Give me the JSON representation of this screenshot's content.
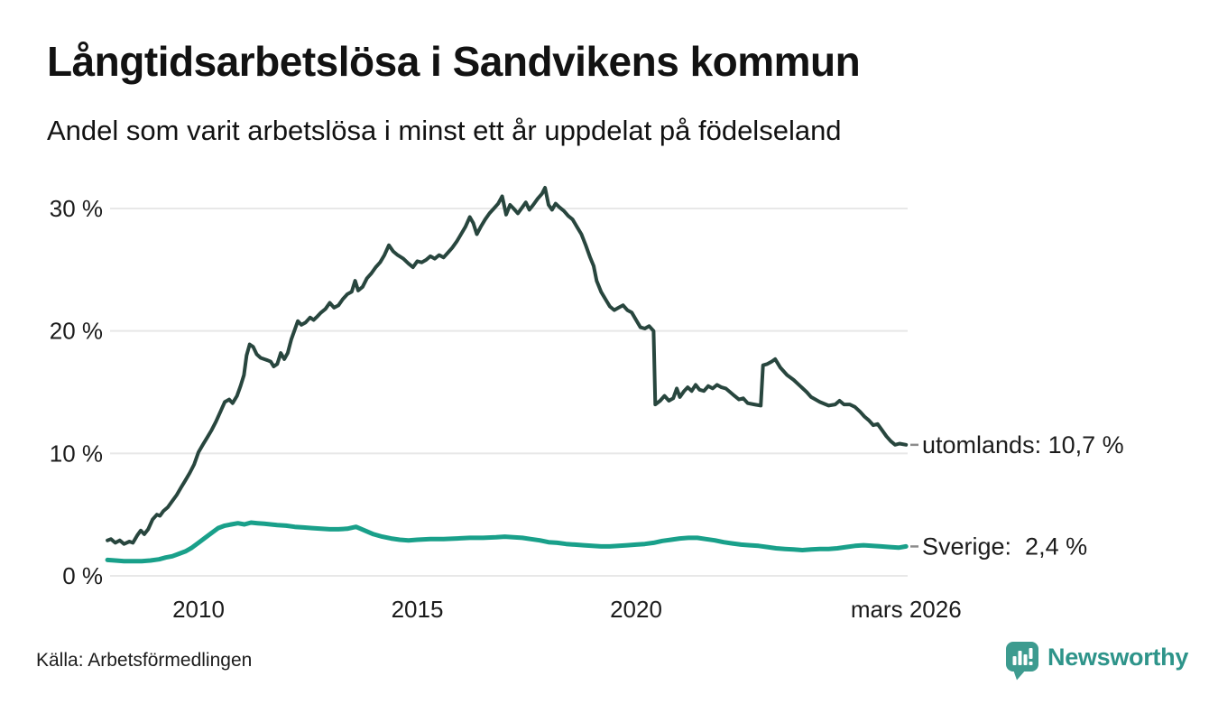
{
  "header": {
    "title": "Långtidsarbetslösa i Sandvikens kommun",
    "subtitle": "Andel som varit arbetslösa i minst ett år uppdelat på födelseland"
  },
  "footer": {
    "source": "Källa: Arbetsförmedlingen",
    "brand": "Newsworthy",
    "brand_icon": "newsworthy-chart-bubble-icon"
  },
  "colors": {
    "utomlands_line": "#28463e",
    "sverige_line": "#19a08a",
    "grid": "#e8e8e8",
    "text": "#1c1c1c",
    "label_dash": "#8c8c8c",
    "brand_icon": "#3d9b8f",
    "brand_text": "#2e948a",
    "background": "#ffffff"
  },
  "chart_data": {
    "type": "line",
    "title": "Långtidsarbetslösa i Sandvikens kommun",
    "subtitle": "Andel som varit arbetslösa i minst ett år uppdelat på födelseland",
    "x_unit": "year",
    "x_range": [
      2007.92,
      2026.17
    ],
    "ylim": [
      0,
      32
    ],
    "grid": "horizontal-only",
    "legend_position": "end-of-line-labels",
    "y_ticks": [
      {
        "value": 0,
        "label": "0 %"
      },
      {
        "value": 10,
        "label": "10 %"
      },
      {
        "value": 20,
        "label": "20 %"
      },
      {
        "value": 30,
        "label": "30 %"
      }
    ],
    "x_ticks": [
      {
        "value": 2010,
        "label": "2010"
      },
      {
        "value": 2015,
        "label": "2015"
      },
      {
        "value": 2020,
        "label": "2020"
      },
      {
        "value": 2026.17,
        "label": "mars 2026"
      }
    ],
    "series": [
      {
        "name": "utomlands",
        "end_label": "utomlands: 10,7 %",
        "latest_value": 10.7,
        "color": "#28463e",
        "points": [
          [
            2007.92,
            2.9
          ],
          [
            2008.0,
            3.0
          ],
          [
            2008.1,
            2.7
          ],
          [
            2008.2,
            2.9
          ],
          [
            2008.3,
            2.6
          ],
          [
            2008.42,
            2.8
          ],
          [
            2008.5,
            2.7
          ],
          [
            2008.6,
            3.3
          ],
          [
            2008.68,
            3.7
          ],
          [
            2008.76,
            3.4
          ],
          [
            2008.85,
            3.8
          ],
          [
            2008.95,
            4.6
          ],
          [
            2009.05,
            5.0
          ],
          [
            2009.12,
            4.9
          ],
          [
            2009.2,
            5.3
          ],
          [
            2009.3,
            5.6
          ],
          [
            2009.4,
            6.1
          ],
          [
            2009.5,
            6.6
          ],
          [
            2009.6,
            7.2
          ],
          [
            2009.7,
            7.8
          ],
          [
            2009.8,
            8.4
          ],
          [
            2009.9,
            9.1
          ],
          [
            2010.0,
            10.1
          ],
          [
            2010.1,
            10.7
          ],
          [
            2010.2,
            11.3
          ],
          [
            2010.3,
            11.9
          ],
          [
            2010.4,
            12.6
          ],
          [
            2010.5,
            13.4
          ],
          [
            2010.6,
            14.2
          ],
          [
            2010.7,
            14.4
          ],
          [
            2010.78,
            14.1
          ],
          [
            2010.88,
            14.7
          ],
          [
            2010.96,
            15.5
          ],
          [
            2011.04,
            16.4
          ],
          [
            2011.1,
            18.0
          ],
          [
            2011.17,
            18.9
          ],
          [
            2011.25,
            18.7
          ],
          [
            2011.33,
            18.1
          ],
          [
            2011.42,
            17.8
          ],
          [
            2011.5,
            17.7
          ],
          [
            2011.58,
            17.6
          ],
          [
            2011.65,
            17.5
          ],
          [
            2011.72,
            17.1
          ],
          [
            2011.8,
            17.3
          ],
          [
            2011.88,
            18.2
          ],
          [
            2011.96,
            17.7
          ],
          [
            2012.04,
            18.2
          ],
          [
            2012.12,
            19.3
          ],
          [
            2012.2,
            20.1
          ],
          [
            2012.27,
            20.8
          ],
          [
            2012.35,
            20.5
          ],
          [
            2012.45,
            20.7
          ],
          [
            2012.55,
            21.1
          ],
          [
            2012.63,
            20.9
          ],
          [
            2012.72,
            21.2
          ],
          [
            2012.8,
            21.5
          ],
          [
            2012.9,
            21.8
          ],
          [
            2013.0,
            22.3
          ],
          [
            2013.1,
            21.9
          ],
          [
            2013.2,
            22.1
          ],
          [
            2013.3,
            22.6
          ],
          [
            2013.4,
            23.0
          ],
          [
            2013.5,
            23.2
          ],
          [
            2013.58,
            24.1
          ],
          [
            2013.65,
            23.3
          ],
          [
            2013.75,
            23.6
          ],
          [
            2013.85,
            24.3
          ],
          [
            2013.95,
            24.7
          ],
          [
            2014.05,
            25.2
          ],
          [
            2014.15,
            25.6
          ],
          [
            2014.25,
            26.2
          ],
          [
            2014.35,
            27.0
          ],
          [
            2014.45,
            26.5
          ],
          [
            2014.55,
            26.2
          ],
          [
            2014.68,
            25.9
          ],
          [
            2014.8,
            25.5
          ],
          [
            2014.9,
            25.2
          ],
          [
            2015.0,
            25.7
          ],
          [
            2015.1,
            25.6
          ],
          [
            2015.2,
            25.8
          ],
          [
            2015.3,
            26.1
          ],
          [
            2015.4,
            25.9
          ],
          [
            2015.5,
            26.2
          ],
          [
            2015.6,
            26.0
          ],
          [
            2015.7,
            26.4
          ],
          [
            2015.8,
            26.8
          ],
          [
            2015.9,
            27.3
          ],
          [
            2016.0,
            27.9
          ],
          [
            2016.1,
            28.5
          ],
          [
            2016.2,
            29.3
          ],
          [
            2016.28,
            28.8
          ],
          [
            2016.36,
            27.9
          ],
          [
            2016.45,
            28.5
          ],
          [
            2016.55,
            29.1
          ],
          [
            2016.65,
            29.6
          ],
          [
            2016.75,
            30.0
          ],
          [
            2016.85,
            30.4
          ],
          [
            2016.94,
            31.0
          ],
          [
            2017.03,
            29.5
          ],
          [
            2017.12,
            30.3
          ],
          [
            2017.2,
            30.0
          ],
          [
            2017.3,
            29.6
          ],
          [
            2017.4,
            30.1
          ],
          [
            2017.48,
            30.5
          ],
          [
            2017.56,
            29.9
          ],
          [
            2017.65,
            30.3
          ],
          [
            2017.75,
            30.8
          ],
          [
            2017.85,
            31.2
          ],
          [
            2017.92,
            31.7
          ],
          [
            2018.0,
            30.3
          ],
          [
            2018.08,
            29.9
          ],
          [
            2018.16,
            30.4
          ],
          [
            2018.25,
            30.1
          ],
          [
            2018.35,
            29.8
          ],
          [
            2018.45,
            29.4
          ],
          [
            2018.55,
            29.1
          ],
          [
            2018.65,
            28.5
          ],
          [
            2018.75,
            27.9
          ],
          [
            2018.85,
            27.0
          ],
          [
            2018.95,
            26.0
          ],
          [
            2019.03,
            25.3
          ],
          [
            2019.1,
            24.1
          ],
          [
            2019.2,
            23.2
          ],
          [
            2019.3,
            22.6
          ],
          [
            2019.4,
            22.0
          ],
          [
            2019.5,
            21.7
          ],
          [
            2019.6,
            21.9
          ],
          [
            2019.7,
            22.1
          ],
          [
            2019.8,
            21.7
          ],
          [
            2019.9,
            21.5
          ],
          [
            2020.0,
            20.9
          ],
          [
            2020.1,
            20.3
          ],
          [
            2020.2,
            20.2
          ],
          [
            2020.3,
            20.4
          ],
          [
            2020.4,
            20.0
          ],
          [
            2020.44,
            14.0
          ],
          [
            2020.55,
            14.3
          ],
          [
            2020.65,
            14.7
          ],
          [
            2020.75,
            14.3
          ],
          [
            2020.85,
            14.5
          ],
          [
            2020.93,
            15.3
          ],
          [
            2021.0,
            14.6
          ],
          [
            2021.1,
            15.1
          ],
          [
            2021.18,
            15.4
          ],
          [
            2021.27,
            15.1
          ],
          [
            2021.36,
            15.6
          ],
          [
            2021.45,
            15.2
          ],
          [
            2021.55,
            15.1
          ],
          [
            2021.65,
            15.5
          ],
          [
            2021.75,
            15.3
          ],
          [
            2021.85,
            15.6
          ],
          [
            2021.95,
            15.4
          ],
          [
            2022.05,
            15.3
          ],
          [
            2022.15,
            15.0
          ],
          [
            2022.25,
            14.7
          ],
          [
            2022.35,
            14.4
          ],
          [
            2022.45,
            14.5
          ],
          [
            2022.55,
            14.1
          ],
          [
            2022.7,
            14.0
          ],
          [
            2022.85,
            13.9
          ],
          [
            2022.9,
            17.2
          ],
          [
            2023.0,
            17.3
          ],
          [
            2023.1,
            17.5
          ],
          [
            2023.18,
            17.7
          ],
          [
            2023.3,
            17.0
          ],
          [
            2023.45,
            16.4
          ],
          [
            2023.6,
            16.0
          ],
          [
            2023.75,
            15.5
          ],
          [
            2023.9,
            15.0
          ],
          [
            2024.0,
            14.6
          ],
          [
            2024.2,
            14.2
          ],
          [
            2024.4,
            13.9
          ],
          [
            2024.55,
            14.0
          ],
          [
            2024.65,
            14.3
          ],
          [
            2024.75,
            14.0
          ],
          [
            2024.88,
            14.0
          ],
          [
            2025.0,
            13.8
          ],
          [
            2025.12,
            13.4
          ],
          [
            2025.22,
            13.0
          ],
          [
            2025.32,
            12.7
          ],
          [
            2025.42,
            12.3
          ],
          [
            2025.52,
            12.4
          ],
          [
            2025.62,
            11.9
          ],
          [
            2025.72,
            11.4
          ],
          [
            2025.82,
            11.0
          ],
          [
            2025.92,
            10.7
          ],
          [
            2026.02,
            10.8
          ],
          [
            2026.17,
            10.7
          ]
        ]
      },
      {
        "name": "Sverige",
        "end_label": "Sverige:  2,4 %",
        "latest_value": 2.4,
        "color": "#19a08a",
        "points": [
          [
            2007.92,
            1.3
          ],
          [
            2008.1,
            1.25
          ],
          [
            2008.3,
            1.2
          ],
          [
            2008.5,
            1.2
          ],
          [
            2008.7,
            1.2
          ],
          [
            2008.9,
            1.25
          ],
          [
            2009.1,
            1.35
          ],
          [
            2009.25,
            1.5
          ],
          [
            2009.4,
            1.6
          ],
          [
            2009.55,
            1.8
          ],
          [
            2009.7,
            2.0
          ],
          [
            2009.85,
            2.3
          ],
          [
            2010.0,
            2.7
          ],
          [
            2010.15,
            3.1
          ],
          [
            2010.3,
            3.5
          ],
          [
            2010.45,
            3.9
          ],
          [
            2010.6,
            4.1
          ],
          [
            2010.75,
            4.2
          ],
          [
            2010.9,
            4.3
          ],
          [
            2011.05,
            4.2
          ],
          [
            2011.2,
            4.35
          ],
          [
            2011.35,
            4.3
          ],
          [
            2011.5,
            4.25
          ],
          [
            2011.65,
            4.2
          ],
          [
            2011.8,
            4.15
          ],
          [
            2012.0,
            4.1
          ],
          [
            2012.2,
            4.0
          ],
          [
            2012.4,
            3.95
          ],
          [
            2012.6,
            3.9
          ],
          [
            2012.8,
            3.85
          ],
          [
            2013.0,
            3.8
          ],
          [
            2013.2,
            3.8
          ],
          [
            2013.4,
            3.85
          ],
          [
            2013.6,
            4.0
          ],
          [
            2013.8,
            3.7
          ],
          [
            2014.0,
            3.4
          ],
          [
            2014.2,
            3.2
          ],
          [
            2014.4,
            3.05
          ],
          [
            2014.6,
            2.95
          ],
          [
            2014.8,
            2.9
          ],
          [
            2015.0,
            2.95
          ],
          [
            2015.3,
            3.0
          ],
          [
            2015.6,
            3.0
          ],
          [
            2015.9,
            3.05
          ],
          [
            2016.2,
            3.1
          ],
          [
            2016.5,
            3.1
          ],
          [
            2016.8,
            3.15
          ],
          [
            2017.0,
            3.2
          ],
          [
            2017.2,
            3.15
          ],
          [
            2017.4,
            3.1
          ],
          [
            2017.6,
            3.0
          ],
          [
            2017.8,
            2.9
          ],
          [
            2018.0,
            2.75
          ],
          [
            2018.2,
            2.7
          ],
          [
            2018.4,
            2.6
          ],
          [
            2018.6,
            2.55
          ],
          [
            2018.8,
            2.5
          ],
          [
            2019.0,
            2.45
          ],
          [
            2019.2,
            2.4
          ],
          [
            2019.4,
            2.4
          ],
          [
            2019.6,
            2.45
          ],
          [
            2019.8,
            2.5
          ],
          [
            2020.0,
            2.55
          ],
          [
            2020.2,
            2.6
          ],
          [
            2020.4,
            2.7
          ],
          [
            2020.6,
            2.85
          ],
          [
            2020.8,
            2.95
          ],
          [
            2021.0,
            3.05
          ],
          [
            2021.2,
            3.1
          ],
          [
            2021.4,
            3.1
          ],
          [
            2021.6,
            3.0
          ],
          [
            2021.8,
            2.9
          ],
          [
            2022.0,
            2.75
          ],
          [
            2022.2,
            2.65
          ],
          [
            2022.4,
            2.55
          ],
          [
            2022.6,
            2.5
          ],
          [
            2022.8,
            2.45
          ],
          [
            2023.0,
            2.35
          ],
          [
            2023.2,
            2.25
          ],
          [
            2023.4,
            2.2
          ],
          [
            2023.6,
            2.15
          ],
          [
            2023.8,
            2.1
          ],
          [
            2024.0,
            2.15
          ],
          [
            2024.2,
            2.2
          ],
          [
            2024.4,
            2.2
          ],
          [
            2024.6,
            2.25
          ],
          [
            2024.8,
            2.35
          ],
          [
            2025.0,
            2.45
          ],
          [
            2025.2,
            2.5
          ],
          [
            2025.4,
            2.45
          ],
          [
            2025.6,
            2.4
          ],
          [
            2025.8,
            2.35
          ],
          [
            2026.0,
            2.3
          ],
          [
            2026.17,
            2.4
          ]
        ]
      }
    ]
  }
}
